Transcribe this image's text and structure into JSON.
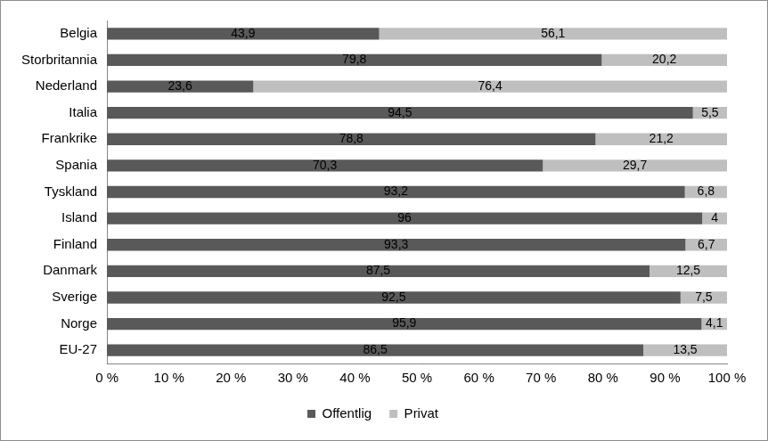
{
  "chart_data": {
    "type": "bar",
    "orientation": "horizontal",
    "stacked": true,
    "categories": [
      "Belgia",
      "Storbritannia",
      "Nederland",
      "Italia",
      "Frankrike",
      "Spania",
      "Tyskland",
      "Island",
      "Finland",
      "Danmark",
      "Sverige",
      "Norge",
      "EU-27"
    ],
    "series": [
      {
        "name": "Offentlig",
        "color": "#595959",
        "values": [
          43.9,
          79.8,
          23.6,
          94.5,
          78.8,
          70.3,
          93.2,
          96,
          93.3,
          87.5,
          92.5,
          95.9,
          86.5
        ],
        "value_labels": [
          "43,9",
          "79,8",
          "23,6",
          "94,5",
          "78,8",
          "70,3",
          "93,2",
          "96",
          "93,3",
          "87,5",
          "92,5",
          "95,9",
          "86,5"
        ]
      },
      {
        "name": "Privat",
        "color": "#bfbfbf",
        "values": [
          56.1,
          20.2,
          76.4,
          5.5,
          21.2,
          29.7,
          6.8,
          4,
          6.7,
          12.5,
          7.5,
          4.1,
          13.5
        ],
        "value_labels": [
          "56,1",
          "20,2",
          "76,4",
          "5,5",
          "21,2",
          "29,7",
          "6,8",
          "4",
          "6,7",
          "12,5",
          "7,5",
          "4,1",
          "13,5"
        ]
      }
    ],
    "xlim": [
      0,
      100
    ],
    "xticks": [
      {
        "value": 0,
        "label": "0 %"
      },
      {
        "value": 10,
        "label": "10 %"
      },
      {
        "value": 20,
        "label": "20 %"
      },
      {
        "value": 30,
        "label": "30 %"
      },
      {
        "value": 40,
        "label": "40 %"
      },
      {
        "value": 50,
        "label": "50 %"
      },
      {
        "value": 60,
        "label": "60 %"
      },
      {
        "value": 70,
        "label": "70 %"
      },
      {
        "value": 80,
        "label": "80 %"
      },
      {
        "value": 90,
        "label": "90 %"
      },
      {
        "value": 100,
        "label": "100 %"
      }
    ],
    "grid": false,
    "legend": "bottom",
    "data_labels": true
  }
}
